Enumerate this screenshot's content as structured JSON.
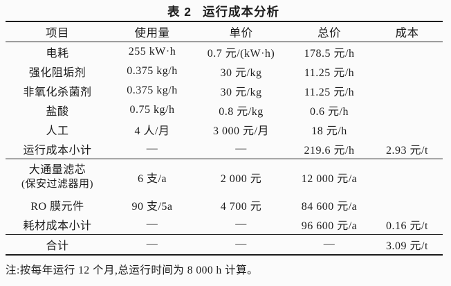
{
  "caption": {
    "label": "表 2",
    "title": "运行成本分析"
  },
  "colors": {
    "background": "#fbfbfb",
    "text": "#1c1c1c",
    "rule": "#1a1a1a"
  },
  "table": {
    "headers": [
      "项目",
      "使用量",
      "单价",
      "总价",
      "成本"
    ],
    "rows": [
      {
        "item": "电耗",
        "usage": "255 kW·h",
        "unit_price": "0.7 元/(kW·h)",
        "total_price": "178.5 元/h",
        "cost": ""
      },
      {
        "item": "强化阻垢剂",
        "usage": "0.375 kg/h",
        "unit_price": "30 元/kg",
        "total_price": "11.25 元/h",
        "cost": ""
      },
      {
        "item": "非氧化杀菌剂",
        "usage": "0.375 kg/h",
        "unit_price": "30 元/kg",
        "total_price": "11.25 元/h",
        "cost": ""
      },
      {
        "item": "盐酸",
        "usage": "0.75 kg/h",
        "unit_price": "0.8 元/kg",
        "total_price": "0.6 元/h",
        "cost": ""
      },
      {
        "item": "人工",
        "usage": "4 人/月",
        "unit_price": "3 000 元/月",
        "total_price": "18 元/h",
        "cost": ""
      },
      {
        "item": "运行成本小计",
        "usage": "—",
        "unit_price": "—",
        "total_price": "219.6 元/h",
        "cost": "2.93 元/t"
      },
      {
        "item_line1": "大通量滤芯",
        "item_line2": "(保安过滤器用)",
        "usage": "6 支/a",
        "unit_price": "2 000 元",
        "total_price": "12 000 元/a",
        "cost": ""
      },
      {
        "item": "RO 膜元件",
        "usage": "90 支/5a",
        "unit_price": "4 700 元",
        "total_price": "84 600 元/a",
        "cost": ""
      },
      {
        "item": "耗材成本小计",
        "usage": "—",
        "unit_price": "—",
        "total_price": "96 600 元/a",
        "cost": "0.16 元/t"
      },
      {
        "item": "合计",
        "usage": "—",
        "unit_price": "—",
        "total_price": "—",
        "cost": "3.09 元/t"
      }
    ]
  },
  "note": "注:按每年运行 12 个月,总运行时间为 8 000 h 计算。"
}
